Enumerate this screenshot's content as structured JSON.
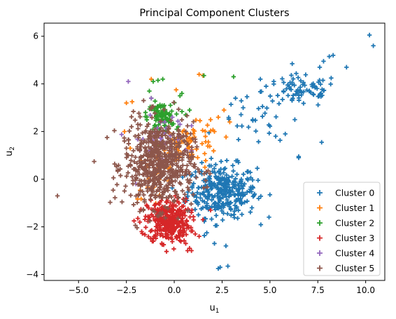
{
  "chart_data": {
    "type": "scatter",
    "title": "Principal Component Clusters",
    "xlabel": {
      "base": "u",
      "sub": "1"
    },
    "ylabel": {
      "base": "u",
      "sub": "2"
    },
    "xlim": [
      -6.8,
      11.0
    ],
    "ylim": [
      -4.25,
      6.55
    ],
    "xticks": [
      -5.0,
      -2.5,
      0.0,
      2.5,
      5.0,
      7.5,
      10.0
    ],
    "xtick_labels": [
      "−5.0",
      "−2.5",
      "0.0",
      "2.5",
      "5.0",
      "7.5",
      "10.0"
    ],
    "yticks": [
      -4,
      -2,
      0,
      2,
      4,
      6
    ],
    "ytick_labels": [
      "−4",
      "−2",
      "0",
      "2",
      "4",
      "6"
    ],
    "grid": false,
    "legend_position": "lower-right",
    "marker": "plus",
    "series": [
      {
        "name": "Cluster 0",
        "color": "#1f77b4",
        "clusters": [
          {
            "center": [
              2.5,
              -0.5
            ],
            "spread": [
              0.9,
              0.55
            ],
            "n": 320
          },
          {
            "center": [
              6.6,
              3.7
            ],
            "spread": [
              1.0,
              0.35
            ],
            "n": 80
          },
          {
            "center": [
              4.2,
              2.4
            ],
            "spread": [
              0.9,
              0.5
            ],
            "n": 25
          }
        ],
        "points": [
          [
            10.2,
            6.05
          ],
          [
            10.4,
            5.6
          ],
          [
            9.0,
            4.7
          ],
          [
            8.3,
            5.2
          ],
          [
            7.8,
            4.95
          ],
          [
            7.6,
            4.7
          ],
          [
            8.1,
            5.15
          ],
          [
            7.7,
            1.55
          ],
          [
            6.5,
            0.95
          ],
          [
            6.5,
            0.9
          ],
          [
            5.8,
            1.9
          ],
          [
            5.3,
            1.8
          ],
          [
            6.3,
            2.5
          ],
          [
            2.3,
            -3.75
          ],
          [
            2.4,
            -3.7
          ],
          [
            2.8,
            -3.65
          ],
          [
            2.1,
            -2.7
          ],
          [
            2.7,
            -2.8
          ],
          [
            1.7,
            -2.25
          ],
          [
            3.2,
            3.4
          ],
          [
            3.6,
            3.0
          ],
          [
            4.1,
            2.5
          ],
          [
            4.5,
            4.2
          ],
          [
            4.8,
            3.9
          ],
          [
            5.2,
            4.1
          ]
        ]
      },
      {
        "name": "Cluster 1",
        "color": "#ff7f0e",
        "clusters": [
          {
            "center": [
              0.9,
              1.5
            ],
            "spread": [
              0.75,
              0.4
            ],
            "n": 70
          },
          {
            "center": [
              -1.0,
              0.2
            ],
            "spread": [
              0.55,
              0.5
            ],
            "n": 25
          }
        ],
        "points": [
          [
            -2.5,
            3.2
          ],
          [
            -2.2,
            3.25
          ],
          [
            -1.2,
            4.2
          ],
          [
            0.1,
            3.75
          ],
          [
            1.3,
            4.4
          ],
          [
            1.5,
            4.35
          ],
          [
            1.9,
            2.5
          ],
          [
            2.3,
            2.6
          ],
          [
            2.9,
            2.4
          ],
          [
            2.1,
            2.0
          ],
          [
            -2.3,
            1.3
          ],
          [
            -2.6,
            2.0
          ],
          [
            1.6,
            0.5
          ],
          [
            2.6,
            2.9
          ]
        ]
      },
      {
        "name": "Cluster 2",
        "color": "#2ca02c",
        "clusters": [
          {
            "center": [
              -0.7,
              2.6
            ],
            "spread": [
              0.35,
              0.3
            ],
            "n": 85
          }
        ],
        "points": [
          [
            -1.1,
            4.1
          ],
          [
            -0.85,
            4.15
          ],
          [
            -0.6,
            4.2
          ],
          [
            -1.3,
            3.7
          ],
          [
            -1.2,
            3.4
          ],
          [
            0.3,
            3.5
          ],
          [
            0.4,
            3.6
          ],
          [
            0.8,
            2.9
          ],
          [
            0.6,
            2.7
          ],
          [
            -1.5,
            2.8
          ],
          [
            1.55,
            4.35
          ],
          [
            3.1,
            4.3
          ],
          [
            -0.2,
            3.1
          ],
          [
            0.2,
            2.2
          ],
          [
            -1.0,
            3.0
          ]
        ]
      },
      {
        "name": "Cluster 3",
        "color": "#d62728",
        "clusters": [
          {
            "center": [
              -0.3,
              -1.75
            ],
            "spread": [
              0.55,
              0.45
            ],
            "n": 360
          }
        ],
        "points": [
          [
            -1.8,
            -1.8
          ],
          [
            -1.7,
            -2.2
          ],
          [
            -2.1,
            -1.75
          ],
          [
            1.1,
            -2.3
          ],
          [
            0.8,
            -2.9
          ],
          [
            0.7,
            -3.0
          ],
          [
            0.9,
            -3.0
          ],
          [
            1.5,
            -1.7
          ],
          [
            1.3,
            -2.4
          ],
          [
            -1.1,
            -2.6
          ],
          [
            0.6,
            -2.7
          ],
          [
            1.9,
            -1.3
          ]
        ]
      },
      {
        "name": "Cluster 4",
        "color": "#9467bd",
        "clusters": [
          {
            "center": [
              -0.8,
              1.7
            ],
            "spread": [
              0.65,
              0.45
            ],
            "n": 40
          }
        ],
        "points": [
          [
            -2.4,
            4.1
          ],
          [
            -1.2,
            3.4
          ],
          [
            -2.0,
            -0.2
          ],
          [
            -1.8,
            1.2
          ],
          [
            0.3,
            2.3
          ],
          [
            0.9,
            1.2
          ],
          [
            -0.1,
            2.6
          ],
          [
            -0.5,
            2.4
          ]
        ]
      },
      {
        "name": "Cluster 5",
        "color": "#8c564b",
        "clusters": [
          {
            "center": [
              -0.8,
              0.6
            ],
            "spread": [
              0.9,
              0.9
            ],
            "n": 600
          }
        ],
        "points": [
          [
            -6.1,
            -0.7
          ],
          [
            -2.6,
            1.6
          ],
          [
            -2.4,
            1.0
          ],
          [
            -2.5,
            1.3
          ],
          [
            -1.1,
            3.05
          ],
          [
            -1.6,
            3.3
          ],
          [
            -2.2,
            0.1
          ],
          [
            -1.9,
            2.3
          ]
        ]
      }
    ]
  }
}
